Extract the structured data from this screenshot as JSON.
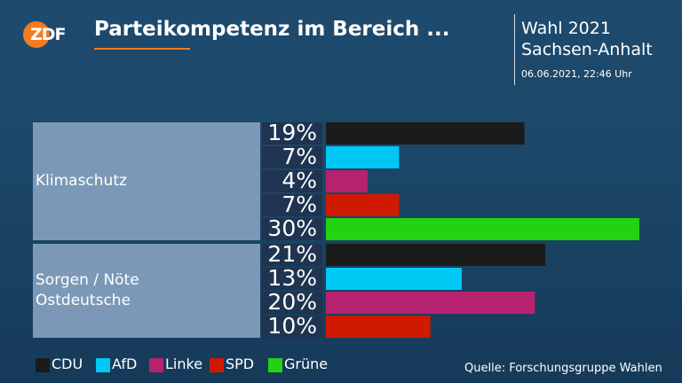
{
  "header": {
    "logo_text": "ZDF",
    "title": "Parteikompetenz im Bereich ...",
    "election_line1": "Wahl 2021",
    "election_line2": "Sachsen-Anhalt",
    "timestamp": "06.06.2021, 22:46 Uhr"
  },
  "colors": {
    "accent": "#f47b20",
    "CDU": "#1b1b1b",
    "AfD": "#00c8f5",
    "Linke": "#b7226f",
    "SPD": "#d01a00",
    "Grüne": "#23d312"
  },
  "chart_data": {
    "type": "bar",
    "orientation": "horizontal",
    "groups": [
      {
        "category_lines": [
          "Klimaschutz"
        ],
        "bars": [
          {
            "party": "CDU",
            "value": 19,
            "label": "19%"
          },
          {
            "party": "AfD",
            "value": 7,
            "label": "7%"
          },
          {
            "party": "Linke",
            "value": 4,
            "label": "4%"
          },
          {
            "party": "SPD",
            "value": 7,
            "label": "7%"
          },
          {
            "party": "Grüne",
            "value": 30,
            "label": "30%"
          }
        ]
      },
      {
        "category_lines": [
          "Sorgen / Nöte",
          "Ostdeutsche"
        ],
        "bars": [
          {
            "party": "CDU",
            "value": 21,
            "label": "21%"
          },
          {
            "party": "AfD",
            "value": 13,
            "label": "13%"
          },
          {
            "party": "Linke",
            "value": 20,
            "label": "20%"
          },
          {
            "party": "SPD",
            "value": 10,
            "label": "10%"
          }
        ]
      }
    ],
    "xlim": [
      0,
      30
    ],
    "grid": false,
    "legend": {
      "position": "bottom-left",
      "entries": [
        "CDU",
        "AfD",
        "Linke",
        "SPD",
        "Grüne"
      ]
    }
  },
  "source": "Quelle: Forschungsgruppe Wahlen"
}
